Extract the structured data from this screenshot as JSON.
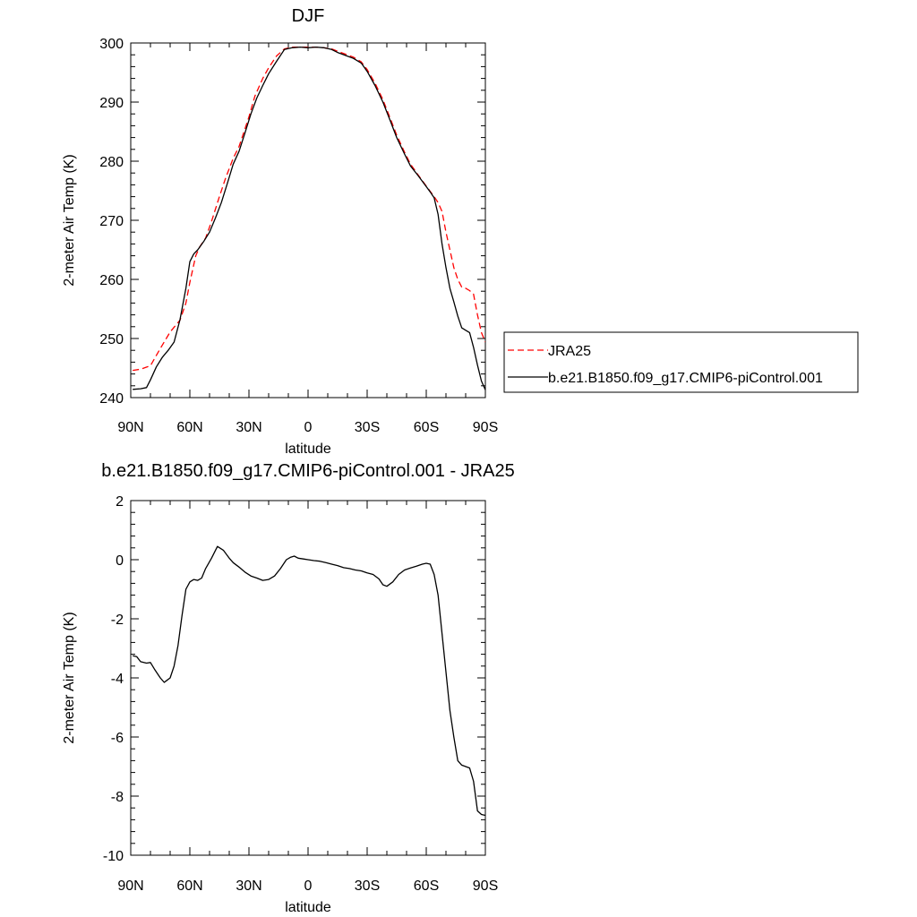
{
  "chart_data": [
    {
      "type": "line",
      "title": "DJF",
      "xlabel": "latitude",
      "ylabel": "2-meter Air Temp (K)",
      "xlim": [
        90,
        -90
      ],
      "ylim": [
        240,
        300
      ],
      "xticks": [
        90,
        60,
        30,
        0,
        -30,
        -60,
        -90
      ],
      "xtick_labels": [
        "90N",
        "60N",
        "30N",
        "0",
        "30S",
        "60S",
        "90S"
      ],
      "yticks": [
        240,
        250,
        260,
        270,
        280,
        290,
        300
      ],
      "ytick_labels": [
        "240",
        "250",
        "260",
        "270",
        "280",
        "290",
        "300"
      ],
      "legend_position": "right",
      "series": [
        {
          "name": "JRA25",
          "color": "#ff0000",
          "dash": "dashed",
          "x": [
            89,
            85,
            80,
            75,
            70,
            65,
            62,
            60,
            57,
            55,
            52,
            49,
            45,
            42,
            38,
            35,
            30,
            27,
            23,
            20,
            16,
            12,
            8,
            4,
            0,
            -4,
            -8,
            -12,
            -15,
            -19,
            -23,
            -27,
            -30,
            -34,
            -38,
            -42,
            -45,
            -49,
            -52,
            -56,
            -60,
            -62,
            -64,
            -66,
            -68,
            -70,
            -72,
            -74,
            -76,
            -78,
            -80,
            -82,
            -84,
            -86,
            -88,
            -90
          ],
          "y": [
            244.6,
            244.8,
            245.4,
            248.3,
            251.1,
            253.1,
            256.0,
            259.5,
            264.0,
            265.5,
            267.0,
            269.8,
            274.0,
            277.0,
            280.5,
            282.5,
            287.5,
            291.0,
            294.0,
            295.8,
            297.8,
            299.0,
            299.3,
            299.3,
            299.3,
            299.3,
            299.2,
            299.0,
            298.6,
            298.1,
            297.6,
            296.8,
            295.5,
            293.2,
            290.4,
            287.0,
            284.4,
            281.5,
            279.5,
            277.6,
            275.8,
            274.9,
            274.0,
            273.0,
            271.5,
            268.0,
            265.0,
            262.0,
            260.0,
            258.7,
            258.5,
            258.1,
            257.5,
            254.0,
            251.0,
            249.4
          ]
        },
        {
          "name": "b.e21.B1850.f09_g17.CMIP6-piControl.001",
          "color": "#000000",
          "dash": "solid",
          "x": [
            89,
            85,
            82,
            80,
            77,
            74,
            71,
            68,
            65,
            62,
            60,
            58,
            56,
            53,
            50,
            47,
            44,
            41,
            38,
            35,
            32,
            29,
            26,
            23,
            20,
            16,
            12,
            8,
            4,
            0,
            -4,
            -8,
            -12,
            -15,
            -19,
            -23,
            -27,
            -30,
            -34,
            -38,
            -42,
            -45,
            -49,
            -52,
            -56,
            -60,
            -62,
            -64,
            -66,
            -68,
            -70,
            -72,
            -74,
            -76,
            -78,
            -80,
            -82,
            -84,
            -86,
            -88,
            -90
          ],
          "y": [
            241.4,
            241.5,
            241.7,
            243.0,
            245.2,
            246.8,
            248.0,
            249.4,
            253.2,
            258.5,
            263.0,
            264.3,
            265.0,
            266.4,
            268.0,
            270.4,
            273.0,
            276.2,
            279.5,
            281.7,
            284.8,
            288.0,
            290.7,
            292.8,
            294.8,
            296.9,
            298.9,
            299.2,
            299.3,
            299.2,
            299.3,
            299.2,
            298.9,
            298.4,
            297.9,
            297.4,
            296.6,
            295.2,
            292.8,
            290.0,
            286.6,
            284.0,
            281.2,
            279.2,
            277.5,
            275.7,
            274.8,
            273.8,
            271.0,
            266.0,
            262.0,
            258.5,
            256.2,
            253.8,
            251.8,
            251.4,
            251.0,
            248.5,
            245.5,
            242.8,
            241.3
          ]
        }
      ]
    },
    {
      "type": "line",
      "title": "b.e21.B1850.f09_g17.CMIP6-piControl.001 - JRA25",
      "xlabel": "latitude",
      "ylabel": "2-meter Air Temp (K)",
      "xlim": [
        90,
        -90
      ],
      "ylim": [
        -10,
        2
      ],
      "xticks": [
        90,
        60,
        30,
        0,
        -30,
        -60,
        -90
      ],
      "xtick_labels": [
        "90N",
        "60N",
        "30N",
        "0",
        "30S",
        "60S",
        "90S"
      ],
      "yticks": [
        2,
        0,
        -2,
        -4,
        -6,
        -8,
        -10
      ],
      "ytick_labels": [
        "2",
        "0",
        "-2",
        "-4",
        "-6",
        "-8",
        "-10"
      ],
      "series": [
        {
          "color": "#000000",
          "dash": "solid",
          "x": [
            89,
            87,
            85,
            82,
            80,
            78,
            75,
            73,
            72,
            70,
            68,
            66,
            64,
            62,
            60,
            58,
            56,
            54,
            52,
            49,
            46,
            43,
            40,
            38,
            35,
            32,
            29,
            26,
            23,
            20,
            17,
            14,
            11,
            9,
            7,
            5,
            2,
            0,
            -3,
            -6,
            -9,
            -12,
            -15,
            -18,
            -21,
            -24,
            -27,
            -30,
            -33,
            -36,
            -38,
            -40,
            -43,
            -46,
            -49,
            -52,
            -55,
            -58,
            -60,
            -62,
            -64,
            -66,
            -68,
            -70,
            -72,
            -74,
            -76,
            -78,
            -80,
            -82,
            -84,
            -86,
            -88,
            -90
          ],
          "y": [
            -3.25,
            -3.28,
            -3.45,
            -3.5,
            -3.48,
            -3.7,
            -4.0,
            -4.15,
            -4.1,
            -4.0,
            -3.6,
            -2.9,
            -1.9,
            -1.0,
            -0.75,
            -0.67,
            -0.7,
            -0.62,
            -0.3,
            0.05,
            0.45,
            0.32,
            0.05,
            -0.1,
            -0.25,
            -0.42,
            -0.55,
            -0.62,
            -0.7,
            -0.67,
            -0.55,
            -0.3,
            0.0,
            0.08,
            0.12,
            0.05,
            0.02,
            0.0,
            -0.03,
            -0.05,
            -0.1,
            -0.15,
            -0.2,
            -0.27,
            -0.3,
            -0.35,
            -0.38,
            -0.45,
            -0.5,
            -0.65,
            -0.85,
            -0.9,
            -0.75,
            -0.5,
            -0.35,
            -0.28,
            -0.22,
            -0.15,
            -0.12,
            -0.15,
            -0.5,
            -1.2,
            -2.5,
            -3.8,
            -5.1,
            -6.0,
            -6.8,
            -6.95,
            -7.0,
            -7.05,
            -7.5,
            -8.5,
            -8.62,
            -8.65
          ]
        }
      ]
    }
  ]
}
